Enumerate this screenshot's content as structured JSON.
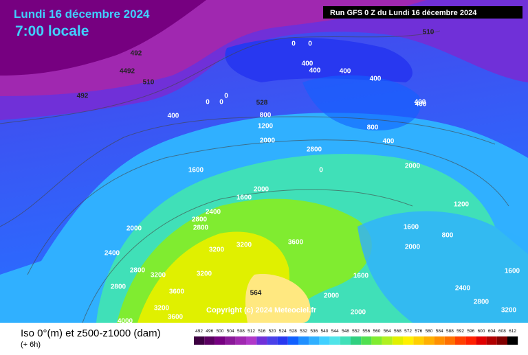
{
  "header": {
    "date": "Lundi 16 décembre 2024",
    "time": "7:00 locale",
    "run": "Run GFS 0 Z du Lundi 16 décembre 2024"
  },
  "copyright": "Copyright (c) 2024 Meteociel.fr",
  "footer": {
    "title": "Iso 0°(m) et z500-z1000 (dam)",
    "step": "(+ 6h)"
  },
  "map_labels": [
    "492",
    "4492",
    "510",
    "492",
    "510",
    "0",
    "0",
    "400",
    "400",
    "400",
    "400",
    "0",
    "0",
    "0",
    "400",
    "400",
    "528",
    "800",
    "1200",
    "2000",
    "2800",
    "0",
    "800",
    "400",
    "2000",
    "1600",
    "1600",
    "2000",
    "2400",
    "2800",
    "2000",
    "2800",
    "3200",
    "3200",
    "3600",
    "2400",
    "2800",
    "3200",
    "3200",
    "2800",
    "3600",
    "3200",
    "4000",
    "3600",
    "564",
    "2000",
    "2000",
    "1600",
    "1200",
    "1600",
    "400",
    "800",
    "2400",
    "2800",
    "3200",
    "1600",
    "2000"
  ],
  "color_scale": {
    "labels": [
      492,
      496,
      500,
      504,
      508,
      512,
      516,
      520,
      524,
      528,
      532,
      536,
      540,
      544,
      548,
      552,
      556,
      560,
      564,
      568,
      572,
      576,
      580,
      584,
      588,
      592,
      596,
      600,
      604,
      608,
      612
    ],
    "colors": [
      "#3c0040",
      "#5a0060",
      "#760080",
      "#8a1898",
      "#a028b0",
      "#b038c8",
      "#7030d8",
      "#4a40e8",
      "#2838f0",
      "#1060ff",
      "#2090ff",
      "#30b0ff",
      "#40d0ff",
      "#50e4e8",
      "#40e0b8",
      "#30d080",
      "#50e050",
      "#80ec30",
      "#b0f020",
      "#e0f000",
      "#fff000",
      "#ffd000",
      "#ffb000",
      "#ff9000",
      "#ff7000",
      "#ff4000",
      "#ff2000",
      "#e00000",
      "#b00000",
      "#800000",
      "#000000"
    ]
  }
}
